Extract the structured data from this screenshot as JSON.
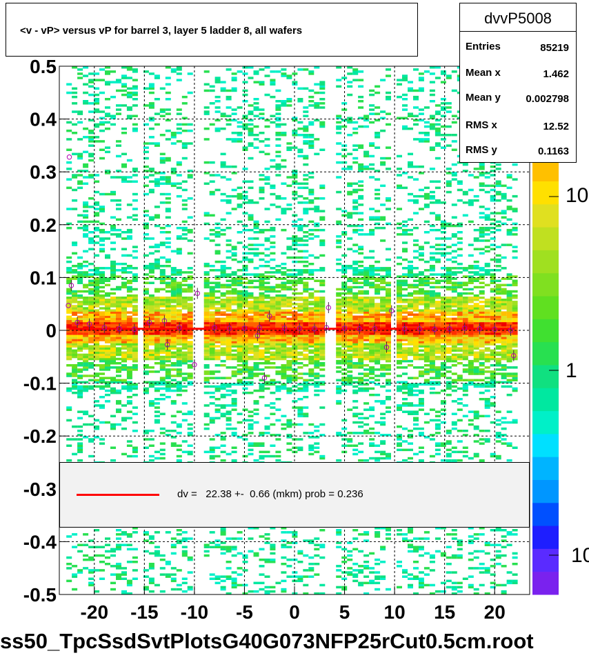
{
  "chart_data": {
    "type": "heatmap",
    "title": "<v - vP>       versus   vP for barrel 3, layer 5 ladder 8, all wafers",
    "xlim": [
      -23.5,
      23.5
    ],
    "ylim": [
      -0.5,
      0.5
    ],
    "x_ticks": [
      "-20",
      "-15",
      "-10",
      "-5",
      "0",
      "5",
      "10",
      "15",
      "20"
    ],
    "x_tick_values": [
      -20,
      -15,
      -10,
      -5,
      0,
      5,
      10,
      15,
      20
    ],
    "y_ticks": [
      "0.5",
      "0.4",
      "0.3",
      "0.2",
      "0.1",
      "0",
      "-0.1",
      "-0.2",
      "-0.3",
      "-0.4",
      "-0.5"
    ],
    "y_tick_values": [
      0.5,
      0.4,
      0.3,
      0.2,
      0.1,
      0,
      -0.1,
      -0.2,
      -0.3,
      -0.4,
      -0.5
    ],
    "grid": true,
    "colorbar": {
      "scale": "log",
      "labels": [
        "10",
        "1",
        "10"
      ]
    },
    "fit_line": {
      "color": "#ff0000",
      "y": 0.003,
      "x_range": [
        -22.5,
        22
      ]
    },
    "profile_points": {
      "x": [
        -22.3,
        -21.7,
        -20.5,
        -19.0,
        -17.5,
        -16.0,
        -14.5,
        -13.0,
        -12.7,
        -11.5,
        -10.0,
        -9.7,
        -8.0,
        -6.5,
        -5.0,
        -3.7,
        -3.5,
        -3.0,
        -2.5,
        -1.0,
        0.5,
        2.0,
        3.2,
        3.4,
        5.0,
        6.5,
        8.0,
        9.2,
        9.7,
        11.0,
        12.5,
        14.0,
        15.5,
        17.0,
        18.5,
        20.0,
        21.6,
        21.9
      ],
      "y": [
        0.085,
        0.015,
        0.012,
        0.005,
        0.003,
        0.002,
        0.015,
        0.018,
        -0.027,
        0.005,
        -0.065,
        0.07,
        0.005,
        0.004,
        0.004,
        -0.01,
        0.005,
        -0.09,
        0.027,
        0.004,
        0.004,
        0.003,
        0.005,
        0.043,
        0.004,
        0.003,
        0.003,
        -0.032,
        0.037,
        0.003,
        0.003,
        0.002,
        0.003,
        0.004,
        0.003,
        0.002,
        0.0,
        -0.048
      ]
    },
    "outlier_points": {
      "x": [
        -22.5,
        -22.6
      ],
      "y": [
        0.328,
        0.047
      ]
    },
    "legend": {
      "entries": [
        "dv =   22.38 +-  0.66 (mkm) prob = 0.236"
      ],
      "placement": "bottom"
    }
  },
  "stats": {
    "name": "dvvP5008",
    "rows": [
      {
        "label": "Entries",
        "value": "85219"
      },
      {
        "label": "Mean x",
        "value": "1.462"
      },
      {
        "label": "Mean y",
        "value": "0.002798"
      },
      {
        "label": "RMS x",
        "value": "12.52"
      },
      {
        "label": "RMS y",
        "value": "0.1163"
      }
    ]
  },
  "footer": "ss50_TpcSsdSvtPlotsG40G073NFP25rCut0.5cm.root",
  "colors": {
    "background": "#ffffff",
    "fit_line": "#ff0000",
    "palette": [
      "#7a22ee",
      "#5a2bff",
      "#1e1eff",
      "#0050ff",
      "#0096ff",
      "#00b4ff",
      "#00e0ff",
      "#00f0c8",
      "#00e8a0",
      "#10e080",
      "#28e050",
      "#40e030",
      "#60e020",
      "#80e020",
      "#a0e020",
      "#c0e020",
      "#e0e020",
      "#ffe000",
      "#ffc000",
      "#ff9000",
      "#ff6000",
      "#ff3000",
      "#ee0000"
    ]
  }
}
